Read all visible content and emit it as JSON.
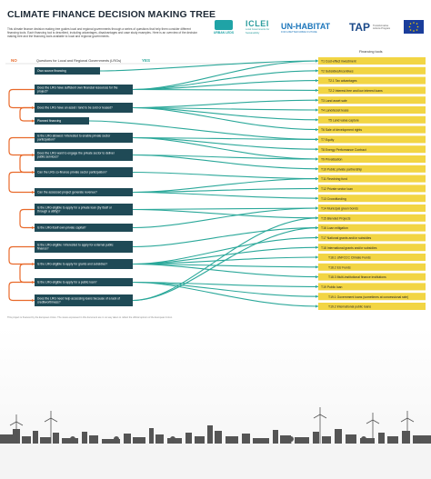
{
  "title": "CLIMATE FINANCE DECISION MAKING TREE",
  "intro": "This climate finance decision making tree guides local and regional governments through a series of questions that help them consider different financing tools. Each financing tool is described, including advantages, disadvantages and case study examples. Here is an overview of the decision making tree and the financing tools available to local and regional governments.",
  "logos": {
    "urban_leds": "URBAN LEDS",
    "iclei": "ICLEI",
    "iclei_sub": "Local Governments for Sustainability",
    "unhabitat": "UN-HABITAT",
    "unhabitat_sub": "FOR A BETTER URBAN FUTURE",
    "tap": "TAP",
    "tap_sub": "Transformative Actions Program"
  },
  "headers": {
    "no": "NO",
    "questions": "Questions for Local and Regional Governments (LRGs)",
    "yes": "YES",
    "tools": "Financing tools"
  },
  "questions": [
    "Own source financing",
    "Does the LRG have sufficient own financial resources for the project?",
    "Does the LRG have an asset / land to be sold or leased?",
    "Planned financing",
    "Is the LRG allowed / interested to enable private sector participation?",
    "Does the LRG want to engage the private sector to deliver public services?",
    "Can the LRG co-finance private sector participation?",
    "Can the assessed project generate revenue?",
    "Is the LRG eligible to apply for a private loan (by itself or through a utility)?",
    "Is the LRG itself own private capital?",
    "Is the LRG eligible / interested to apply for external public finance?",
    "Is the LRG eligible to apply for grants and subsidies?",
    "Is the LRG eligible to apply for a public loan?",
    "Does the LRG need help accessing loans because of a lack of creditworthiness?"
  ],
  "tools": [
    "T1 Cost-effect investment",
    "T2 Subsidies/incentives",
    "T2.1 Tax advantages",
    "T2.2 Interest-free and low interest loans",
    "T3 Land asset sale",
    "T4 Land/asset lease",
    "T5 Land value capture",
    "T6 Sale of development rights",
    "T7 Equity",
    "T8 Energy Performance Contract",
    "T9 Privatisation",
    "T10 Public private partnership",
    "T11 Revolving fund",
    "T12 Private sector loan",
    "T13 Crowdfunding",
    "T14 Municipal green bonds",
    "T15 Blended Projects",
    "T16 Loan mitigation",
    "T17 National grants and/or subsidies",
    "T18 International grants and/or subsidies",
    "T18.1 UNFCCC Climate Funds",
    "T18.2 EU Funds",
    "T18.3 Multi-institutional finance institutions",
    "T19 Public loan",
    "T19.1 Government loans (sometimes at concessional rate)",
    "T19.2 International public loans"
  ],
  "footer": "This project is financed by the European Union. The views expressed in this document are in no way taken to reflect the official opinion of the European Union.",
  "colors": {
    "question_box": "#1f4a56",
    "tool_box": "#f2d544",
    "yes_line": "#2ba89a",
    "no_line": "#e8692a",
    "skyline": "#555555"
  }
}
